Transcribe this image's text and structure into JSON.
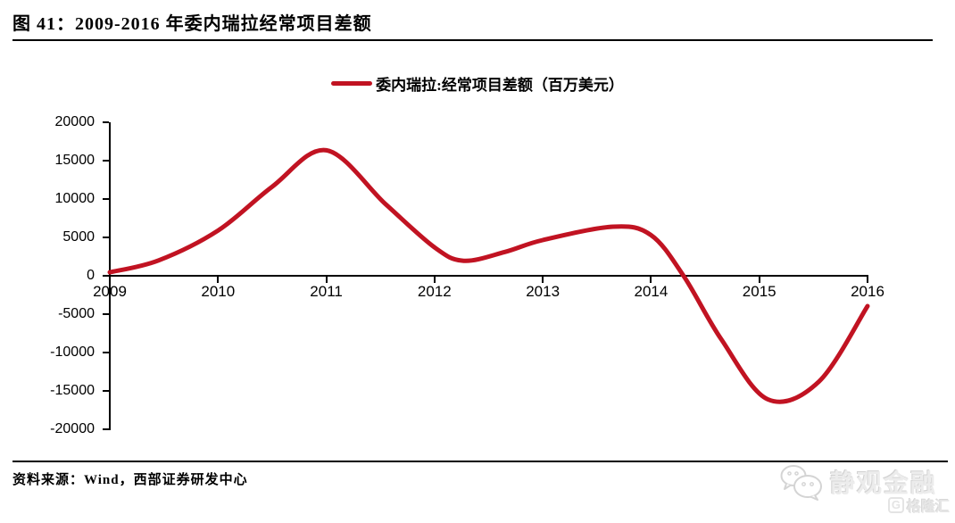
{
  "page": {
    "title": "图 41：2009-2016 年委内瑞拉经常项目差额",
    "source": "资料来源：Wind，西部证券研发中心",
    "watermark": "静观金融",
    "watermark2_icon": "G",
    "watermark2": "格隆汇"
  },
  "legend": {
    "label": "委内瑞拉:经常项目差额（百万美元）"
  },
  "colors": {
    "series_line": "#C11322",
    "axis": "#000000",
    "watermark_gray": "#ececec"
  },
  "chart_data": {
    "type": "line",
    "title": "2009-2016 年委内瑞拉经常项目差额",
    "series": [
      {
        "name": "委内瑞拉:经常项目差额（百万美元）",
        "categories": [
          2009,
          2010,
          2011,
          2012,
          2013,
          2014,
          2015,
          2016
        ],
        "values": [
          450,
          5900,
          16350,
          3700,
          4650,
          5300,
          -16000,
          -3950
        ]
      }
    ],
    "unit": "百万美元",
    "xlabel": "",
    "ylabel": "",
    "x_ticks": [
      "2009",
      "2010",
      "2011",
      "2012",
      "2013",
      "2014",
      "2015",
      "2016"
    ],
    "y_ticks": [
      20000,
      15000,
      10000,
      5000,
      0,
      -5000,
      -10000,
      -15000,
      -20000
    ],
    "xlim": [
      2009,
      2016
    ],
    "ylim": [
      -20000,
      20000
    ],
    "grid": false,
    "legend_position": "top-center",
    "smooth": true,
    "curve_points": [
      [
        2009.0,
        450
      ],
      [
        2009.45,
        2000
      ],
      [
        2010.0,
        5900
      ],
      [
        2010.5,
        11600
      ],
      [
        2011.0,
        16350
      ],
      [
        2011.55,
        9300
      ],
      [
        2012.0,
        3700
      ],
      [
        2012.27,
        1950
      ],
      [
        2012.65,
        3100
      ],
      [
        2013.0,
        4650
      ],
      [
        2013.65,
        6400
      ],
      [
        2014.0,
        5300
      ],
      [
        2014.3,
        0
      ],
      [
        2014.65,
        -8300
      ],
      [
        2015.08,
        -16100
      ],
      [
        2015.55,
        -13800
      ],
      [
        2016.0,
        -3950
      ]
    ]
  }
}
